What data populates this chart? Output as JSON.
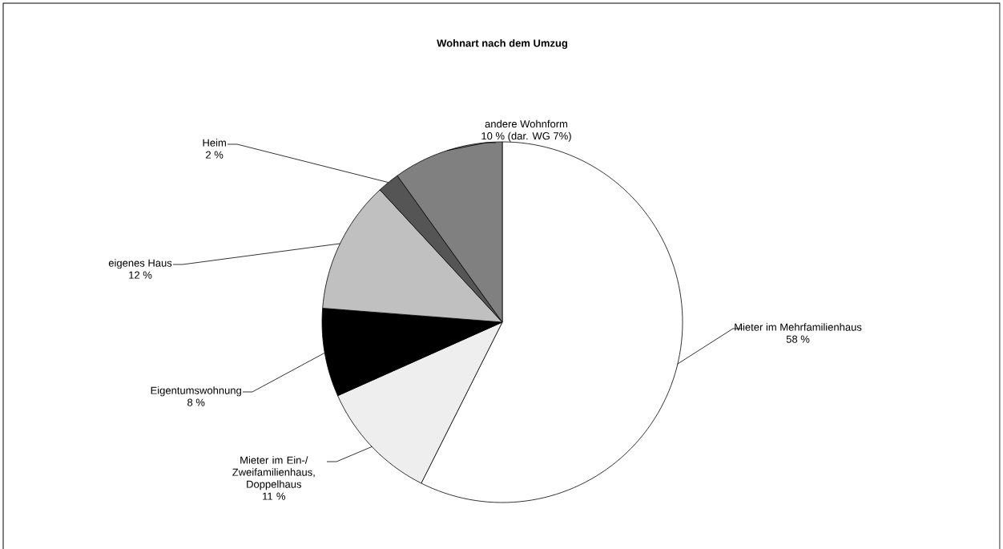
{
  "chart_data": {
    "type": "pie",
    "title": "Wohnart nach dem Umzug",
    "categories": [
      "Mieter im Mehrfamilienhaus",
      "Mieter im Ein-/ Zweifamilienhaus, Doppelhaus",
      "Eigentumswohnung",
      "eigenes Haus",
      "Heim",
      "andere Wohnform"
    ],
    "values": [
      58,
      11,
      8,
      12,
      2,
      10
    ],
    "value_labels": [
      "58 %",
      "11 %",
      "8 %",
      "12 %",
      "2 %",
      "10 % (dar. WG 7%)"
    ],
    "colors": [
      "#ffffff",
      "#eeeeee",
      "#000000",
      "#c0c0c0",
      "#555555",
      "#808080"
    ]
  }
}
